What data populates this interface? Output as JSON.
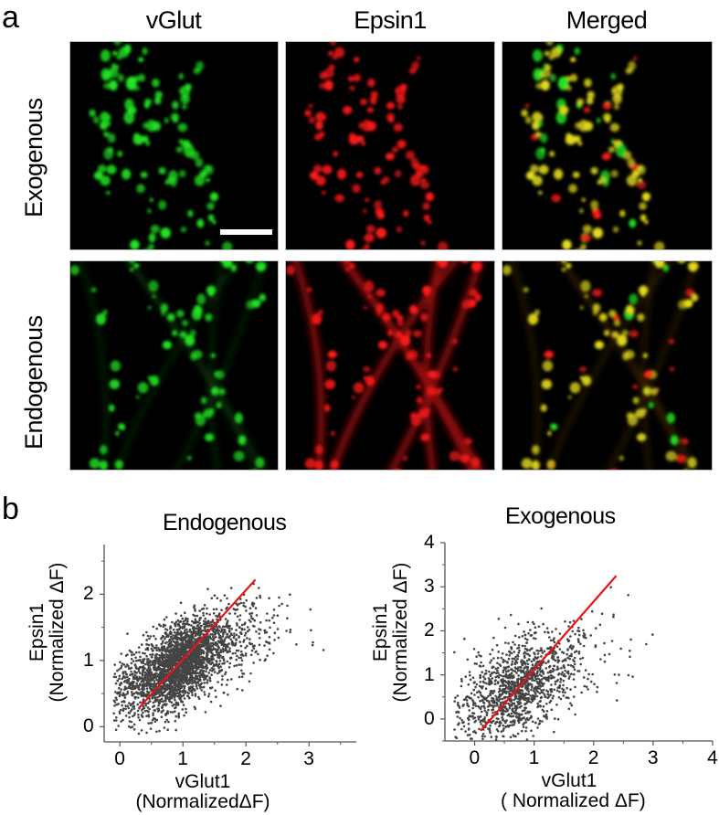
{
  "figure": {
    "panel_a_label": "a",
    "panel_b_label": "b",
    "columns": [
      "vGlut",
      "Epsin1",
      "Merged"
    ],
    "rows": [
      "Exogenous",
      "Endogenous"
    ],
    "scale_bar": true,
    "colors": {
      "green_channel": "#22e622",
      "red_channel": "#ff1a1a",
      "merged_overlap": "#e8e020",
      "scatter_point": "#444444",
      "fit_line": "#ee1111",
      "axis": "#555555"
    }
  },
  "chart_data": [
    {
      "type": "scatter",
      "title": "Endogenous",
      "xlabel": "vGlut1",
      "xlabel_unit": "(NormalizedΔF)",
      "ylabel": "Epsin1",
      "ylabel_unit": "(Normalized ΔF)",
      "xlim": [
        -0.25,
        3.75
      ],
      "ylim": [
        -0.23,
        2.75
      ],
      "xticks": [
        0,
        1,
        2,
        3
      ],
      "yticks": [
        0,
        1,
        2
      ],
      "grid": false,
      "legend": null,
      "n_points_approx": 3000,
      "cloud": {
        "x_mean": 0.95,
        "x_sd": 0.38,
        "y_mean": 0.95,
        "y_sd": 0.38,
        "corr": 0.62
      },
      "fit_line": {
        "x": [
          0.3,
          2.15
        ],
        "y": [
          0.28,
          2.22
        ]
      }
    },
    {
      "type": "scatter",
      "title": "Exogenous",
      "xlabel": "vGlut1",
      "xlabel_unit": "( Normalized ΔF)",
      "ylabel": "Epsin1",
      "ylabel_unit": "(Normalized ΔF)",
      "xlim": [
        -0.5,
        4.0
      ],
      "ylim": [
        -0.5,
        4.0
      ],
      "xticks": [
        0,
        1,
        2,
        3,
        4
      ],
      "yticks": [
        0,
        1,
        2,
        3,
        4
      ],
      "grid": false,
      "legend": null,
      "n_points_approx": 1400,
      "cloud": {
        "x_mean": 0.75,
        "x_sd": 0.45,
        "y_mean": 0.75,
        "y_sd": 0.65,
        "corr": 0.6
      },
      "fit_line": {
        "x": [
          0.1,
          2.38
        ],
        "y": [
          -0.27,
          3.25
        ]
      }
    }
  ]
}
